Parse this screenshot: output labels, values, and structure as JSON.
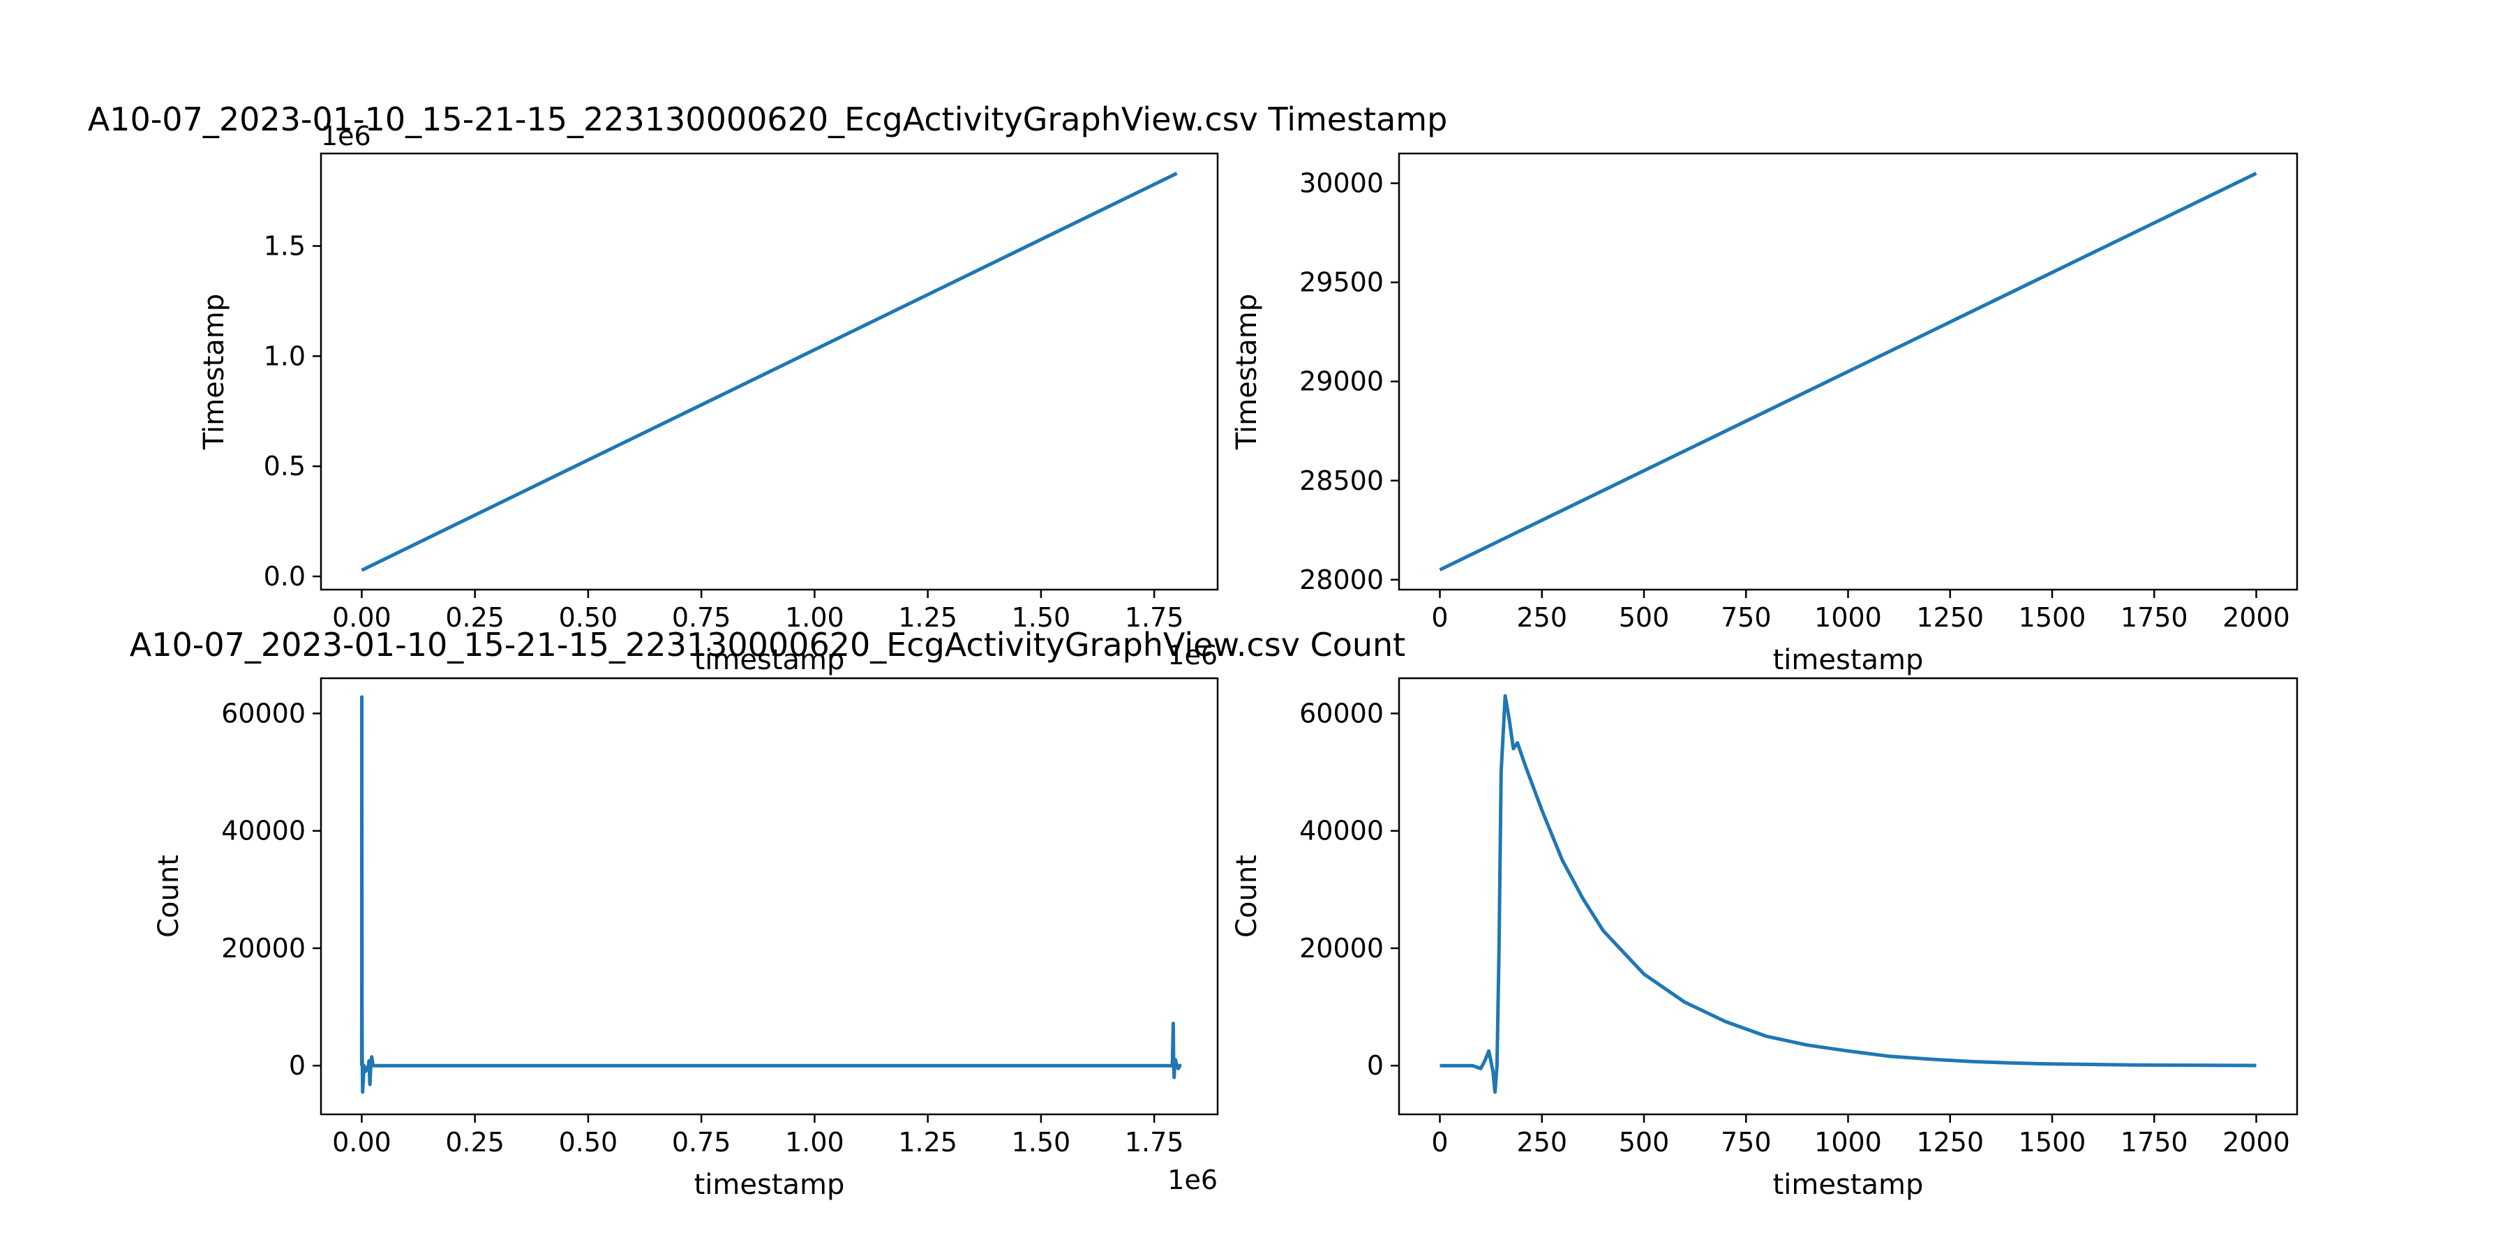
{
  "colors": {
    "line": "#1f77b4",
    "axes": "#000000",
    "background": "#ffffff"
  },
  "titles": {
    "timestamp_row": "A10-07_2023-01-10_15-21-15_223130000620_EcgActivityGraphView.csv Timestamp",
    "count_row": "A10-07_2023-01-10_15-21-15_223130000620_EcgActivityGraphView.csv Count"
  },
  "chart_data": [
    {
      "type": "line",
      "xlabel": "timestamp",
      "ylabel": "Timestamp",
      "x_offset_label": "1e6",
      "y_offset_label": "1e6",
      "xlim": [
        -0.09,
        1.89
      ],
      "ylim": [
        -0.06,
        1.92
      ],
      "xticks": [
        0,
        0.25,
        0.5,
        0.75,
        1.0,
        1.25,
        1.5,
        1.75
      ],
      "xtick_labels": [
        "0.00",
        "0.25",
        "0.50",
        "0.75",
        "1.00",
        "1.25",
        "1.50",
        "1.75"
      ],
      "yticks": [
        0,
        0.5,
        1.0,
        1.5
      ],
      "ytick_labels": [
        "0.0",
        "0.5",
        "1.0",
        "1.5"
      ],
      "series": [
        {
          "x": [
            0,
            1.8
          ],
          "y": [
            0.028,
            1.83
          ]
        }
      ]
    },
    {
      "type": "line",
      "xlabel": "timestamp",
      "ylabel": "Timestamp",
      "xlim": [
        -100,
        2100
      ],
      "ylim": [
        27950,
        30150
      ],
      "xticks": [
        0,
        250,
        500,
        750,
        1000,
        1250,
        1500,
        1750,
        2000
      ],
      "xtick_labels": [
        "0",
        "250",
        "500",
        "750",
        "1000",
        "1250",
        "1500",
        "1750",
        "2000"
      ],
      "yticks": [
        28000,
        28500,
        29000,
        29500,
        30000
      ],
      "ytick_labels": [
        "28000",
        "28500",
        "29000",
        "29500",
        "30000"
      ],
      "series": [
        {
          "x": [
            0,
            2000
          ],
          "y": [
            28050,
            30050
          ]
        }
      ]
    },
    {
      "type": "line",
      "xlabel": "timestamp",
      "ylabel": "Count",
      "x_offset_label": "1e6",
      "xlim": [
        -0.09,
        1.89
      ],
      "ylim": [
        -8300,
        66000
      ],
      "xticks": [
        0,
        0.25,
        0.5,
        0.75,
        1.0,
        1.25,
        1.5,
        1.75
      ],
      "xtick_labels": [
        "0.00",
        "0.25",
        "0.50",
        "0.75",
        "1.00",
        "1.25",
        "1.50",
        "1.75"
      ],
      "yticks": [
        0,
        20000,
        40000,
        60000
      ],
      "ytick_labels": [
        "0",
        "20000",
        "40000",
        "60000"
      ],
      "series": [
        {
          "x": [
            0,
            0.0001,
            0.0002,
            0.0004,
            0.0006,
            0.0009,
            0.0013,
            0.002,
            0.003,
            0.005,
            0.008,
            0.012,
            0.015,
            0.016,
            0.018,
            0.02,
            0.022,
            0.025,
            0.026,
            0.028,
            0.03,
            0.04,
            0.1,
            0.5,
            1.0,
            1.5,
            1.78,
            1.79,
            1.792,
            1.793,
            1.794,
            1.795,
            1.797,
            1.8,
            1.803,
            1.806,
            1.81
          ],
          "y": [
            0,
            62800,
            50000,
            30000,
            10000,
            2000,
            0,
            -4500,
            -3000,
            0,
            -1000,
            -500,
            0,
            800,
            -3200,
            0,
            1500,
            0,
            0,
            0,
            0,
            0,
            0,
            0,
            0,
            0,
            0,
            0,
            7200,
            0,
            -2000,
            0,
            1000,
            0,
            -500,
            0,
            0
          ]
        }
      ]
    },
    {
      "type": "line",
      "xlabel": "timestamp",
      "ylabel": "Count",
      "xlim": [
        -100,
        2100
      ],
      "ylim": [
        -8300,
        66000
      ],
      "xticks": [
        0,
        250,
        500,
        750,
        1000,
        1250,
        1500,
        1750,
        2000
      ],
      "xtick_labels": [
        "0",
        "250",
        "500",
        "750",
        "1000",
        "1250",
        "1500",
        "1750",
        "2000"
      ],
      "yticks": [
        0,
        20000,
        40000,
        60000
      ],
      "ytick_labels": [
        "0",
        "20000",
        "40000",
        "60000"
      ],
      "series": [
        {
          "x": [
            0,
            80,
            100,
            110,
            120,
            130,
            135,
            140,
            145,
            150,
            160,
            170,
            180,
            190,
            200,
            210,
            250,
            300,
            350,
            400,
            500,
            600,
            700,
            800,
            900,
            1000,
            1100,
            1200,
            1300,
            1400,
            1500,
            1600,
            1700,
            1800,
            1900,
            2000
          ],
          "y": [
            0,
            0,
            -500,
            800,
            2500,
            -1000,
            -4500,
            0,
            20000,
            50000,
            63000,
            59000,
            54000,
            55000,
            53000,
            51000,
            43500,
            35000,
            28500,
            23000,
            15600,
            10800,
            7500,
            5000,
            3500,
            2500,
            1600,
            1100,
            700,
            450,
            280,
            200,
            120,
            80,
            50,
            20
          ]
        }
      ]
    }
  ]
}
